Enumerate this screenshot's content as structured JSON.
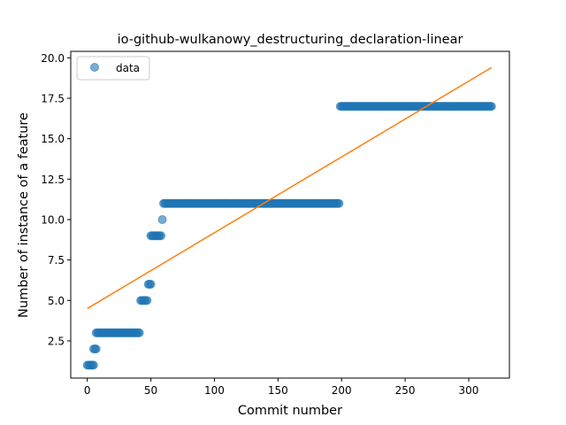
{
  "chart_data": {
    "type": "scatter",
    "title": "io-github-wulkanowy_destructuring_declaration-linear",
    "xlabel": "Commit number",
    "ylabel": "Number of instance of a feature",
    "xlim": [
      -13,
      332
    ],
    "ylim": [
      0.2,
      20.4
    ],
    "xticks": [
      0,
      50,
      100,
      150,
      200,
      250,
      300
    ],
    "xtick_labels": [
      "0",
      "50",
      "100",
      "150",
      "200",
      "250",
      "300"
    ],
    "yticks": [
      2.5,
      5.0,
      7.5,
      10.0,
      12.5,
      15.0,
      17.5,
      20.0
    ],
    "ytick_labels": [
      "2.5",
      "5.0",
      "7.5",
      "10.0",
      "12.5",
      "15.0",
      "17.5",
      "20.0"
    ],
    "grid": false,
    "legend": {
      "placement": "top-left",
      "entries": [
        "data"
      ]
    },
    "series": [
      {
        "name": "data",
        "kind": "scatter",
        "color": "#1f77b4",
        "segments": [
          {
            "x_start": 0,
            "x_end": 5,
            "y": 1
          },
          {
            "x_start": 5,
            "x_end": 7,
            "y": 2
          },
          {
            "x_start": 7,
            "x_end": 41,
            "y": 3
          },
          {
            "x_start": 42,
            "x_end": 47,
            "y": 5
          },
          {
            "x_start": 48,
            "x_end": 50,
            "y": 6
          },
          {
            "x_start": 50,
            "x_end": 58,
            "y": 9
          },
          {
            "x_start": 59,
            "x_end": 59,
            "y": 10
          },
          {
            "x_start": 60,
            "x_end": 198,
            "y": 11
          },
          {
            "x_start": 199,
            "x_end": 318,
            "y": 17
          }
        ]
      },
      {
        "kind": "line",
        "color": "#ff7f0e",
        "x": [
          0,
          318
        ],
        "y": [
          4.5,
          19.4
        ]
      }
    ]
  }
}
